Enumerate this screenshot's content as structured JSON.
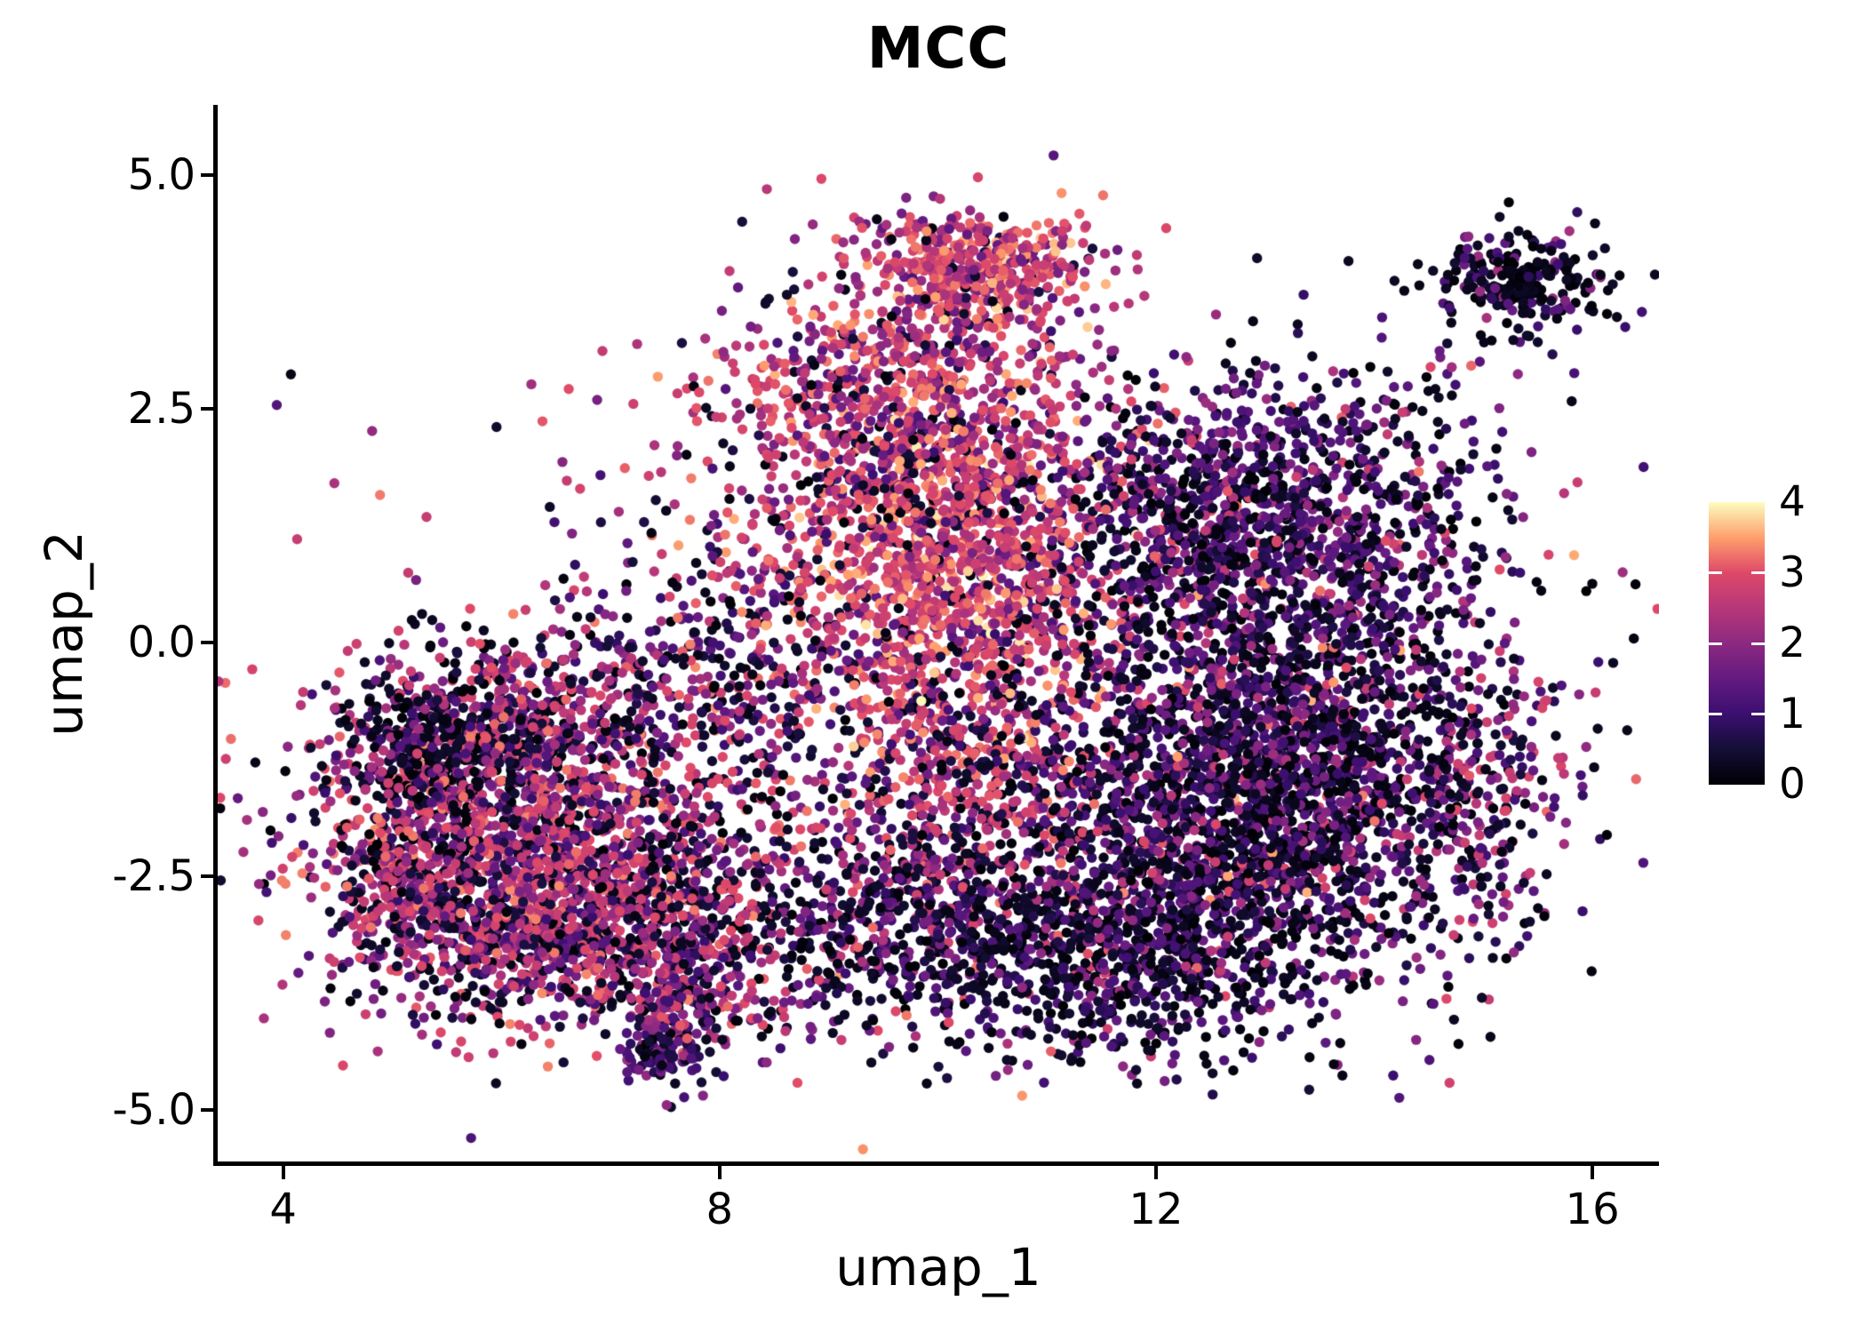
{
  "title": "MCC",
  "axes": {
    "x": {
      "label": "umap_1",
      "ticks": [
        "4",
        "8",
        "12",
        "16"
      ],
      "tick_values": [
        4,
        8,
        12,
        16
      ]
    },
    "y": {
      "label": "umap_2",
      "ticks": [
        "5.0",
        "2.5",
        "0.0",
        "-2.5",
        "-5.0"
      ],
      "tick_values": [
        5.0,
        2.5,
        0.0,
        -2.5,
        -5.0
      ]
    }
  },
  "colorbar": {
    "ticks": [
      "4",
      "3",
      "2",
      "1",
      "0"
    ],
    "tick_values": [
      4,
      3,
      2,
      1,
      0
    ],
    "notch_values": [
      3,
      2,
      1
    ],
    "min": 0,
    "max": 4
  },
  "chart_data": {
    "type": "scatter",
    "title": "MCC",
    "xlabel": "umap_1",
    "ylabel": "umap_2",
    "xlim": [
      3.4,
      16.61
    ],
    "ylim": [
      -5.55,
      5.73
    ],
    "grid": false,
    "legend_position": "right-colorbar",
    "point_radius_px": 5.7,
    "seed": 42,
    "color_scale": {
      "name": "magma",
      "domain": [
        0,
        4
      ],
      "stops": [
        [
          0.0,
          "#000004"
        ],
        [
          0.125,
          "#140e36"
        ],
        [
          0.25,
          "#3b0f70"
        ],
        [
          0.375,
          "#641a80"
        ],
        [
          0.5,
          "#8c2981"
        ],
        [
          0.625,
          "#b73779"
        ],
        [
          0.75,
          "#de4968"
        ],
        [
          0.875,
          "#fe9f6d"
        ],
        [
          1.0,
          "#fcfdbf"
        ]
      ]
    },
    "clusters": [
      {
        "name": "left-core",
        "n": 1500,
        "cx": 6.25,
        "cy": -2.3,
        "sdx": 0.95,
        "sdy": 0.7,
        "mix": [
          [
            0.28,
            0,
            0.6
          ],
          [
            0.14,
            0.8,
            1.6
          ],
          [
            0.38,
            1.7,
            3.0
          ],
          [
            0.2,
            2.6,
            3.4
          ]
        ]
      },
      {
        "name": "left-upper",
        "n": 620,
        "cx": 6.0,
        "cy": -0.95,
        "sdx": 0.85,
        "sdy": 0.55,
        "mix": [
          [
            0.3,
            0,
            0.6
          ],
          [
            0.2,
            0.8,
            1.8
          ],
          [
            0.35,
            1.8,
            3.0
          ],
          [
            0.15,
            2.5,
            3.3
          ]
        ]
      },
      {
        "name": "left-dark-pocket",
        "n": 190,
        "cx": 5.3,
        "cy": -1.1,
        "sdx": 0.33,
        "sdy": 0.42,
        "mix": [
          [
            0.75,
            0,
            0.45
          ],
          [
            0.25,
            0.8,
            1.8
          ]
        ]
      },
      {
        "name": "left-tip",
        "n": 130,
        "cx": 4.95,
        "cy": -2.55,
        "sdx": 0.24,
        "sdy": 0.5,
        "mix": [
          [
            0.25,
            0,
            0.6
          ],
          [
            0.3,
            1.2,
            2.2
          ],
          [
            0.45,
            2.2,
            3.4
          ]
        ]
      },
      {
        "name": "left-bottom",
        "n": 430,
        "cx": 6.45,
        "cy": -3.35,
        "sdx": 0.8,
        "sdy": 0.45,
        "mix": [
          [
            0.35,
            0,
            0.6
          ],
          [
            0.2,
            0.8,
            1.8
          ],
          [
            0.3,
            1.8,
            3.0
          ],
          [
            0.15,
            2.4,
            3.3
          ]
        ]
      },
      {
        "name": "left-bottom-right",
        "n": 260,
        "cx": 7.8,
        "cy": -3.0,
        "sdx": 0.55,
        "sdy": 0.45,
        "mix": [
          [
            0.3,
            0,
            0.6
          ],
          [
            0.25,
            0.8,
            1.8
          ],
          [
            0.3,
            1.8,
            3.0
          ],
          [
            0.15,
            2.3,
            3.2
          ]
        ]
      },
      {
        "name": "bridge-left",
        "n": 400,
        "cx": 7.95,
        "cy": -0.35,
        "sdx": 0.75,
        "sdy": 0.85,
        "mix": [
          [
            0.35,
            0,
            0.7
          ],
          [
            0.25,
            0.9,
            2.0
          ],
          [
            0.3,
            2.0,
            3.1
          ],
          [
            0.1,
            2.8,
            3.4
          ]
        ]
      },
      {
        "name": "mid-core",
        "n": 1300,
        "cx": 10.1,
        "cy": 0.85,
        "sdx": 0.75,
        "sdy": 0.95,
        "mix": [
          [
            0.1,
            0,
            0.6
          ],
          [
            0.12,
            0.9,
            1.8
          ],
          [
            0.43,
            2.2,
            3.2
          ],
          [
            0.3,
            2.7,
            3.6
          ],
          [
            0.05,
            3.5,
            4.0
          ]
        ]
      },
      {
        "name": "mid-upper",
        "n": 820,
        "cx": 9.65,
        "cy": 2.6,
        "sdx": 0.9,
        "sdy": 0.75,
        "mix": [
          [
            0.15,
            0,
            0.7
          ],
          [
            0.27,
            1.2,
            2.2
          ],
          [
            0.43,
            2.0,
            3.2
          ],
          [
            0.15,
            2.9,
            3.6
          ]
        ]
      },
      {
        "name": "top-cap",
        "n": 470,
        "cx": 10.35,
        "cy": 4.0,
        "sdx": 0.52,
        "sdy": 0.32,
        "mix": [
          [
            0.08,
            0,
            0.7
          ],
          [
            0.2,
            1.4,
            2.4
          ],
          [
            0.5,
            2.3,
            3.3
          ],
          [
            0.22,
            2.9,
            3.8
          ]
        ]
      },
      {
        "name": "mid-bottom",
        "n": 680,
        "cx": 10.35,
        "cy": -1.7,
        "sdx": 0.85,
        "sdy": 0.85,
        "mix": [
          [
            0.3,
            0,
            0.7
          ],
          [
            0.2,
            0.9,
            1.9
          ],
          [
            0.37,
            2.0,
            3.2
          ],
          [
            0.13,
            2.7,
            3.5
          ]
        ]
      },
      {
        "name": "bottom-mid-dark",
        "n": 420,
        "cx": 9.6,
        "cy": -3.1,
        "sdx": 0.7,
        "sdy": 0.55,
        "mix": [
          [
            0.45,
            0,
            0.5
          ],
          [
            0.3,
            0.6,
            1.5
          ],
          [
            0.2,
            1.5,
            2.6
          ],
          [
            0.05,
            2.6,
            3.3
          ]
        ]
      },
      {
        "name": "right-core",
        "n": 2450,
        "cx": 13.1,
        "cy": -1.5,
        "sdx": 1.05,
        "sdy": 1.05,
        "mix": [
          [
            0.44,
            0,
            0.4
          ],
          [
            0.34,
            0.55,
            1.4
          ],
          [
            0.16,
            1.4,
            2.2
          ],
          [
            0.05,
            2.2,
            3.0
          ],
          [
            0.01,
            3.0,
            3.6
          ]
        ]
      },
      {
        "name": "right-upper",
        "n": 1450,
        "cx": 12.95,
        "cy": 1.25,
        "sdx": 1.0,
        "sdy": 0.8,
        "mix": [
          [
            0.36,
            0,
            0.45
          ],
          [
            0.34,
            0.6,
            1.4
          ],
          [
            0.24,
            1.3,
            2.2
          ],
          [
            0.06,
            2.2,
            3.2
          ]
        ]
      },
      {
        "name": "right-bottom",
        "n": 780,
        "cx": 11.65,
        "cy": -3.3,
        "sdx": 0.9,
        "sdy": 0.6,
        "mix": [
          [
            0.52,
            0,
            0.45
          ],
          [
            0.3,
            0.55,
            1.4
          ],
          [
            0.14,
            1.3,
            2.2
          ],
          [
            0.04,
            2.3,
            3.2
          ]
        ]
      },
      {
        "name": "right-edge",
        "n": 150,
        "cx": 15.05,
        "cy": -1.9,
        "sdx": 0.35,
        "sdy": 0.85,
        "mix": [
          [
            0.3,
            0,
            0.6
          ],
          [
            0.3,
            0.9,
            1.9
          ],
          [
            0.4,
            2.0,
            3.2
          ]
        ]
      },
      {
        "name": "satellite",
        "n": 235,
        "cx": 15.35,
        "cy": 3.85,
        "sdx": 0.42,
        "sdy": 0.28,
        "mix": [
          [
            0.68,
            0,
            0.4
          ],
          [
            0.22,
            0.7,
            1.5
          ],
          [
            0.1,
            1.5,
            2.4
          ]
        ]
      },
      {
        "name": "satellite-halo",
        "n": 16,
        "cx": 14.9,
        "cy": 3.35,
        "sdx": 0.6,
        "sdy": 0.45,
        "mix": [
          [
            0.8,
            0,
            0.5
          ],
          [
            0.2,
            1.0,
            2.0
          ]
        ]
      },
      {
        "name": "tail",
        "n": 165,
        "cx": 7.55,
        "cy": -3.85,
        "sdx": 0.22,
        "sdy": 0.42,
        "mix": [
          [
            0.25,
            0,
            0.6
          ],
          [
            0.35,
            0.9,
            2.1
          ],
          [
            0.4,
            1.9,
            3.2
          ]
        ]
      },
      {
        "name": "tail-tip",
        "n": 60,
        "cx": 7.45,
        "cy": -4.45,
        "sdx": 0.15,
        "sdy": 0.11,
        "mix": [
          [
            0.3,
            0,
            0.5
          ],
          [
            0.6,
            0.6,
            1.4
          ],
          [
            0.1,
            1.6,
            2.6
          ]
        ]
      },
      {
        "name": "tail-arm",
        "n": 42,
        "cx": 8.35,
        "cy": -4.05,
        "sdx": 0.3,
        "sdy": 0.16,
        "mix": [
          [
            0.3,
            0,
            0.6
          ],
          [
            0.35,
            0.9,
            2.0
          ],
          [
            0.35,
            2.0,
            3.2
          ]
        ]
      },
      {
        "name": "field-noise",
        "n": 420,
        "cx": 9.8,
        "cy": -0.8,
        "sdx": 2.9,
        "sdy": 1.7,
        "mix": [
          [
            0.3,
            0,
            0.6
          ],
          [
            0.25,
            0.8,
            1.8
          ],
          [
            0.3,
            1.8,
            3.0
          ],
          [
            0.15,
            2.6,
            3.5
          ]
        ]
      }
    ]
  }
}
